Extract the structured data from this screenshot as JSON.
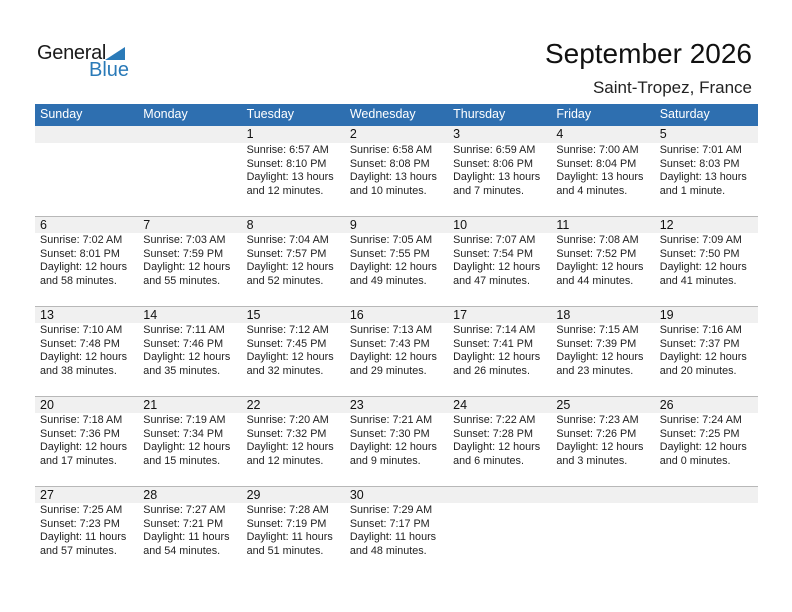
{
  "logo": {
    "text1": "General",
    "text2": "Blue"
  },
  "title": "September 2026",
  "location": "Saint-Tropez, France",
  "colors": {
    "header": "#2e6fb0",
    "brand": "#2a7ab8"
  },
  "weekdays": [
    "Sunday",
    "Monday",
    "Tuesday",
    "Wednesday",
    "Thursday",
    "Friday",
    "Saturday"
  ],
  "weeks": [
    [
      null,
      null,
      {
        "day": "1",
        "sunrise": "Sunrise: 6:57 AM",
        "sunset": "Sunset: 8:10 PM",
        "daylight": "Daylight: 13 hours",
        "minutes": "and 12 minutes."
      },
      {
        "day": "2",
        "sunrise": "Sunrise: 6:58 AM",
        "sunset": "Sunset: 8:08 PM",
        "daylight": "Daylight: 13 hours",
        "minutes": "and 10 minutes."
      },
      {
        "day": "3",
        "sunrise": "Sunrise: 6:59 AM",
        "sunset": "Sunset: 8:06 PM",
        "daylight": "Daylight: 13 hours",
        "minutes": "and 7 minutes."
      },
      {
        "day": "4",
        "sunrise": "Sunrise: 7:00 AM",
        "sunset": "Sunset: 8:04 PM",
        "daylight": "Daylight: 13 hours",
        "minutes": "and 4 minutes."
      },
      {
        "day": "5",
        "sunrise": "Sunrise: 7:01 AM",
        "sunset": "Sunset: 8:03 PM",
        "daylight": "Daylight: 13 hours",
        "minutes": "and 1 minute."
      }
    ],
    [
      {
        "day": "6",
        "sunrise": "Sunrise: 7:02 AM",
        "sunset": "Sunset: 8:01 PM",
        "daylight": "Daylight: 12 hours",
        "minutes": "and 58 minutes."
      },
      {
        "day": "7",
        "sunrise": "Sunrise: 7:03 AM",
        "sunset": "Sunset: 7:59 PM",
        "daylight": "Daylight: 12 hours",
        "minutes": "and 55 minutes."
      },
      {
        "day": "8",
        "sunrise": "Sunrise: 7:04 AM",
        "sunset": "Sunset: 7:57 PM",
        "daylight": "Daylight: 12 hours",
        "minutes": "and 52 minutes."
      },
      {
        "day": "9",
        "sunrise": "Sunrise: 7:05 AM",
        "sunset": "Sunset: 7:55 PM",
        "daylight": "Daylight: 12 hours",
        "minutes": "and 49 minutes."
      },
      {
        "day": "10",
        "sunrise": "Sunrise: 7:07 AM",
        "sunset": "Sunset: 7:54 PM",
        "daylight": "Daylight: 12 hours",
        "minutes": "and 47 minutes."
      },
      {
        "day": "11",
        "sunrise": "Sunrise: 7:08 AM",
        "sunset": "Sunset: 7:52 PM",
        "daylight": "Daylight: 12 hours",
        "minutes": "and 44 minutes."
      },
      {
        "day": "12",
        "sunrise": "Sunrise: 7:09 AM",
        "sunset": "Sunset: 7:50 PM",
        "daylight": "Daylight: 12 hours",
        "minutes": "and 41 minutes."
      }
    ],
    [
      {
        "day": "13",
        "sunrise": "Sunrise: 7:10 AM",
        "sunset": "Sunset: 7:48 PM",
        "daylight": "Daylight: 12 hours",
        "minutes": "and 38 minutes."
      },
      {
        "day": "14",
        "sunrise": "Sunrise: 7:11 AM",
        "sunset": "Sunset: 7:46 PM",
        "daylight": "Daylight: 12 hours",
        "minutes": "and 35 minutes."
      },
      {
        "day": "15",
        "sunrise": "Sunrise: 7:12 AM",
        "sunset": "Sunset: 7:45 PM",
        "daylight": "Daylight: 12 hours",
        "minutes": "and 32 minutes."
      },
      {
        "day": "16",
        "sunrise": "Sunrise: 7:13 AM",
        "sunset": "Sunset: 7:43 PM",
        "daylight": "Daylight: 12 hours",
        "minutes": "and 29 minutes."
      },
      {
        "day": "17",
        "sunrise": "Sunrise: 7:14 AM",
        "sunset": "Sunset: 7:41 PM",
        "daylight": "Daylight: 12 hours",
        "minutes": "and 26 minutes."
      },
      {
        "day": "18",
        "sunrise": "Sunrise: 7:15 AM",
        "sunset": "Sunset: 7:39 PM",
        "daylight": "Daylight: 12 hours",
        "minutes": "and 23 minutes."
      },
      {
        "day": "19",
        "sunrise": "Sunrise: 7:16 AM",
        "sunset": "Sunset: 7:37 PM",
        "daylight": "Daylight: 12 hours",
        "minutes": "and 20 minutes."
      }
    ],
    [
      {
        "day": "20",
        "sunrise": "Sunrise: 7:18 AM",
        "sunset": "Sunset: 7:36 PM",
        "daylight": "Daylight: 12 hours",
        "minutes": "and 17 minutes."
      },
      {
        "day": "21",
        "sunrise": "Sunrise: 7:19 AM",
        "sunset": "Sunset: 7:34 PM",
        "daylight": "Daylight: 12 hours",
        "minutes": "and 15 minutes."
      },
      {
        "day": "22",
        "sunrise": "Sunrise: 7:20 AM",
        "sunset": "Sunset: 7:32 PM",
        "daylight": "Daylight: 12 hours",
        "minutes": "and 12 minutes."
      },
      {
        "day": "23",
        "sunrise": "Sunrise: 7:21 AM",
        "sunset": "Sunset: 7:30 PM",
        "daylight": "Daylight: 12 hours",
        "minutes": "and 9 minutes."
      },
      {
        "day": "24",
        "sunrise": "Sunrise: 7:22 AM",
        "sunset": "Sunset: 7:28 PM",
        "daylight": "Daylight: 12 hours",
        "minutes": "and 6 minutes."
      },
      {
        "day": "25",
        "sunrise": "Sunrise: 7:23 AM",
        "sunset": "Sunset: 7:26 PM",
        "daylight": "Daylight: 12 hours",
        "minutes": "and 3 minutes."
      },
      {
        "day": "26",
        "sunrise": "Sunrise: 7:24 AM",
        "sunset": "Sunset: 7:25 PM",
        "daylight": "Daylight: 12 hours",
        "minutes": "and 0 minutes."
      }
    ],
    [
      {
        "day": "27",
        "sunrise": "Sunrise: 7:25 AM",
        "sunset": "Sunset: 7:23 PM",
        "daylight": "Daylight: 11 hours",
        "minutes": "and 57 minutes."
      },
      {
        "day": "28",
        "sunrise": "Sunrise: 7:27 AM",
        "sunset": "Sunset: 7:21 PM",
        "daylight": "Daylight: 11 hours",
        "minutes": "and 54 minutes."
      },
      {
        "day": "29",
        "sunrise": "Sunrise: 7:28 AM",
        "sunset": "Sunset: 7:19 PM",
        "daylight": "Daylight: 11 hours",
        "minutes": "and 51 minutes."
      },
      {
        "day": "30",
        "sunrise": "Sunrise: 7:29 AM",
        "sunset": "Sunset: 7:17 PM",
        "daylight": "Daylight: 11 hours",
        "minutes": "and 48 minutes."
      },
      null,
      null,
      null
    ]
  ]
}
